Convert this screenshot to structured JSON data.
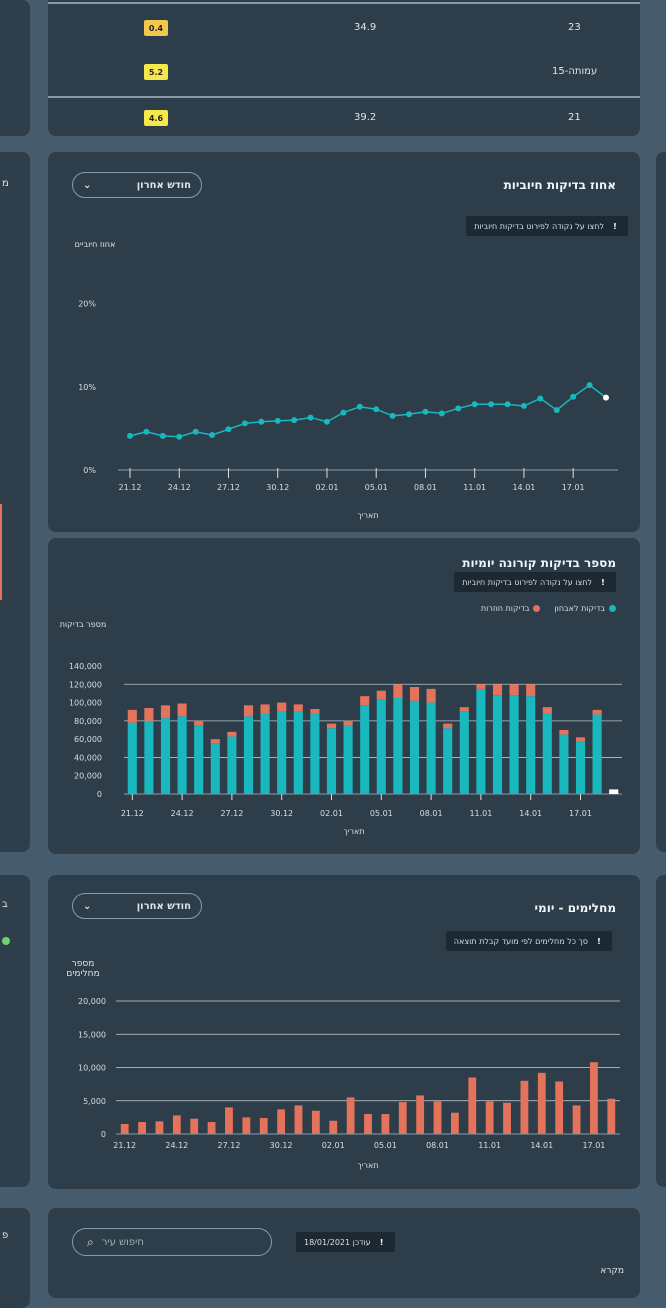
{
  "table_top": {
    "rows": [
      {
        "badge": "0.4",
        "badge_color": "#f2c94c",
        "value": "34.9",
        "label": "23"
      },
      {
        "badge": "5.2",
        "badge_color": "#f6e84a",
        "value": "",
        "label": "15-עמותה"
      },
      {
        "badge": "4.6",
        "badge_color": "#f6e84a",
        "value": "39.2",
        "label": "21"
      }
    ]
  },
  "positive_chart": {
    "title": "אחוז בדיקות חיוביות",
    "dropdown_label": "חודש אחרון",
    "note": "לחצו על נקודה לפירוט בדיקות חיוביות",
    "info_icon": "info-icon",
    "ylabel": "אחוז חיוביים",
    "xlabel": "תאריך",
    "chart_data": {
      "type": "line",
      "title": "אחוז בדיקות חיוביות",
      "xlabel": "תאריך",
      "ylabel": "אחוז חיוביים",
      "ylim": [
        0,
        25
      ],
      "yticks": [
        "0%",
        "10%",
        "20%"
      ],
      "xticks": [
        "21.12",
        "24.12",
        "27.12",
        "30.12",
        "02.01",
        "05.01",
        "08.01",
        "11.01",
        "14.01",
        "17.01"
      ],
      "values": [
        4.1,
        4.6,
        4.1,
        4.0,
        4.6,
        4.2,
        4.9,
        5.6,
        5.8,
        5.9,
        6.0,
        6.3,
        5.8,
        6.9,
        7.6,
        7.3,
        6.5,
        6.7,
        7.0,
        6.8,
        7.4,
        7.9,
        7.9,
        7.9,
        7.7,
        8.6,
        7.2,
        8.8,
        10.2,
        8.7
      ],
      "color": "#19b7be"
    }
  },
  "tests_chart": {
    "title": "מספר בדיקות קורונה יומיות",
    "note": "לחצו על נקודה לפירוט בדיקות חיוביות",
    "ylabel": "מספר בדיקות",
    "xlabel": "תאריך",
    "legend": [
      {
        "label": "בדיקות לאבחון",
        "color": "#19b7be"
      },
      {
        "label": "בדיקות חוזרות",
        "color": "#e3735a"
      }
    ],
    "chart_data": {
      "type": "bar",
      "title": "מספר בדיקות קורונה יומיות",
      "xlabel": "תאריך",
      "ylabel": "מספר בדיקות",
      "ylim": [
        0,
        140000
      ],
      "yticks": [
        "0",
        "20,000",
        "40,000",
        "60,000",
        "80,000",
        "100,000",
        "120,000",
        "140,000"
      ],
      "xticks": [
        "21.12",
        "24.12",
        "27.12",
        "30.12",
        "02.01",
        "05.01",
        "08.01",
        "11.01",
        "14.01",
        "17.01"
      ],
      "series": [
        {
          "name": "בדיקות לאבחון",
          "color": "#19b7be",
          "values": [
            78000,
            80000,
            83000,
            85000,
            75000,
            55000,
            63000,
            85000,
            88000,
            90000,
            90000,
            88000,
            72000,
            75000,
            97000,
            103000,
            105000,
            102000,
            100000,
            72000,
            90000,
            115000,
            108000,
            108000,
            107000,
            88000,
            65000,
            57000,
            87000,
            5000
          ]
        },
        {
          "name": "בדיקות חוזרות",
          "color": "#e3735a",
          "values": [
            14000,
            14000,
            14000,
            14000,
            5000,
            5000,
            5000,
            12000,
            10000,
            10000,
            8000,
            5000,
            5000,
            5000,
            10000,
            10000,
            15000,
            15000,
            15000,
            5000,
            5000,
            5000,
            12000,
            12000,
            13000,
            7000,
            5000,
            5000,
            5000,
            0
          ]
        }
      ]
    }
  },
  "hosp_chart": {
    "title": "מחלימים - יומי",
    "dropdown_label": "חודש אחרון",
    "note": "סך כל מחלימים לפי מועד קבלת תוצאה",
    "ylabel": "מספר מחלימים",
    "xlabel": "תאריך",
    "chart_data": {
      "type": "bar",
      "title": "מחלימים - יומי",
      "xlabel": "תאריך",
      "ylabel": "מספר מחלימים",
      "ylim": [
        0,
        20000
      ],
      "yticks": [
        "0",
        "5,000",
        "10,000",
        "15,000",
        "20,000"
      ],
      "xticks": [
        "21.12",
        "24.12",
        "27.12",
        "30.12",
        "02.01",
        "05.01",
        "08.01",
        "11.01",
        "14.01",
        "17.01"
      ],
      "values": [
        1500,
        1800,
        1900,
        2800,
        2300,
        1800,
        4000,
        2500,
        2400,
        3700,
        4300,
        3500,
        2000,
        5500,
        3000,
        3000,
        4800,
        5800,
        4900,
        3200,
        8500,
        4900,
        4700,
        8000,
        9200,
        7900,
        4300,
        10800,
        5300
      ],
      "color": "#e3735a"
    }
  },
  "bottom": {
    "search_placeholder": "חיפוש עיר",
    "note": "עודכן 18/01/2021",
    "caption": "מקרא"
  },
  "left_side": {
    "label_a": "מ",
    "label_b": "ב",
    "label_c": "פ"
  }
}
